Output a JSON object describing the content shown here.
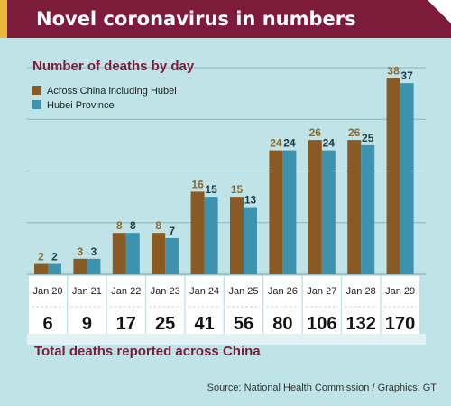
{
  "header": {
    "title": "Novel coronavirus in numbers"
  },
  "chart_data": {
    "type": "bar",
    "title": "Number of deaths by day",
    "categories": [
      "Jan 20",
      "Jan 21",
      "Jan 22",
      "Jan 23",
      "Jan 24",
      "Jan 25",
      "Jan 26",
      "Jan 27",
      "Jan 28",
      "Jan 29"
    ],
    "series": [
      {
        "name": "Across China including Hubei",
        "color": "#8a5a24",
        "label_color": "#8a6a2e",
        "values": [
          2,
          3,
          8,
          8,
          16,
          15,
          24,
          26,
          26,
          38
        ]
      },
      {
        "name": "Hubei Province",
        "color": "#3d93ad",
        "label_color": "#1d3a4c",
        "values": [
          2,
          3,
          8,
          7,
          15,
          13,
          24,
          24,
          25,
          37
        ]
      }
    ],
    "ylim": [
      0,
      40
    ],
    "grid": true,
    "legend_position": "top-left"
  },
  "totals": {
    "label": "Total deaths reported across China",
    "values": [
      "6",
      "9",
      "17",
      "25",
      "41",
      "56",
      "80",
      "106",
      "132",
      "170"
    ]
  },
  "footer": {
    "source": "Source: National Health Commission / Graphics: GT"
  },
  "colors": {
    "title_bar": "#7c1c3a",
    "accent": "#e9b83a",
    "background": "#bfe3e6",
    "chart_title": "#7c1c3a"
  }
}
